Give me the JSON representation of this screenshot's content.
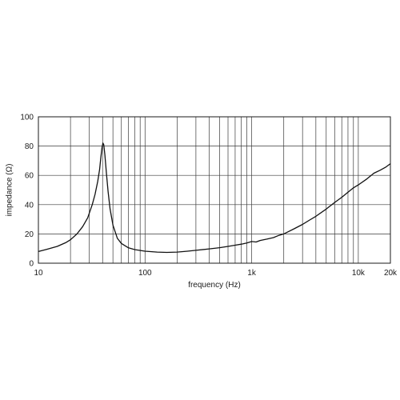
{
  "chart_data": {
    "type": "line",
    "title": "",
    "xlabel": "frequency (Hz)",
    "ylabel": "impedance (Ω)",
    "x_scale": "log",
    "xlim": [
      10,
      20000
    ],
    "ylim": [
      0,
      100
    ],
    "grid": true,
    "x_tick_labels": [
      {
        "value": 10,
        "label": "10"
      },
      {
        "value": 100,
        "label": "100"
      },
      {
        "value": 1000,
        "label": "1k"
      },
      {
        "value": 10000,
        "label": "10k"
      },
      {
        "value": 20000,
        "label": "20k"
      }
    ],
    "y_ticks": [
      0,
      20,
      40,
      60,
      80,
      100
    ],
    "y_tick_labels": [
      "0",
      "20",
      "40",
      "60",
      "80",
      "100"
    ],
    "series": [
      {
        "color": "#111111",
        "x": [
          10,
          12,
          15,
          18,
          20,
          23,
          26,
          29,
          32,
          34,
          36,
          37.5,
          38.5,
          39.5,
          40.3,
          41,
          42,
          43.5,
          45,
          47,
          50,
          55,
          60,
          70,
          80,
          100,
          130,
          160,
          200,
          250,
          300,
          400,
          500,
          600,
          700,
          800,
          900,
          1000,
          1100,
          1200,
          1400,
          1600,
          1800,
          2000,
          2200,
          2500,
          3000,
          3500,
          4000,
          5000,
          6000,
          7000,
          8000,
          9000,
          10000,
          12000,
          14000,
          16000,
          18000,
          20000
        ],
        "y": [
          8,
          9.5,
          11.5,
          14,
          16,
          20,
          25,
          31,
          40,
          47,
          56,
          64,
          72,
          79,
          82,
          81,
          74,
          61,
          49,
          37,
          26,
          17,
          13.5,
          10.5,
          9.3,
          8.2,
          7.6,
          7.4,
          7.6,
          8.2,
          8.8,
          9.8,
          10.6,
          11.5,
          12.3,
          13,
          13.8,
          14.8,
          14.5,
          15.5,
          16.5,
          17.5,
          19,
          20,
          21.5,
          23.5,
          26.5,
          29.5,
          32,
          37,
          41.5,
          45,
          48.5,
          51.5,
          53.5,
          57.5,
          61.5,
          63.5,
          65.5,
          68
        ]
      }
    ]
  }
}
